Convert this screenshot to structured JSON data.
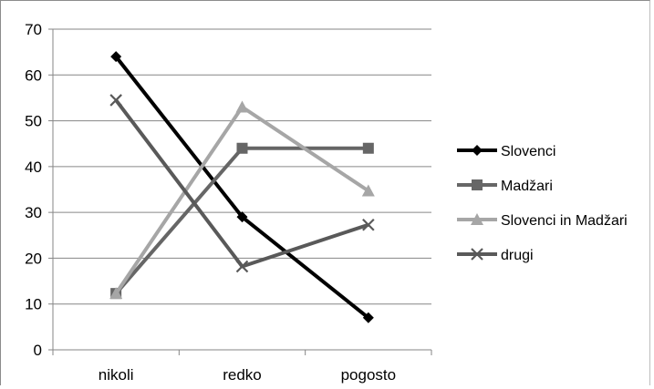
{
  "chart_data": {
    "type": "line",
    "title": "",
    "xlabel": "",
    "ylabel": "",
    "categories": [
      "nikoli",
      "redko",
      "pogosto"
    ],
    "ylim": [
      0,
      70
    ],
    "yticks": [
      0,
      10,
      20,
      30,
      40,
      50,
      60,
      70
    ],
    "grid": "horizontal",
    "legend_position": "right",
    "series": [
      {
        "name": "Slovenci",
        "values": [
          64,
          29,
          7
        ],
        "color": "#000000",
        "marker": "diamond"
      },
      {
        "name": "Madžari",
        "values": [
          12.3,
          44,
          44
        ],
        "color": "#666666",
        "marker": "square"
      },
      {
        "name": "Slovenci in Madžari",
        "values": [
          12.3,
          53,
          34.7
        ],
        "color": "#a6a6a6",
        "marker": "triangle"
      },
      {
        "name": "drugi",
        "values": [
          54.5,
          18.2,
          27.3
        ],
        "color": "#595959",
        "marker": "x"
      }
    ]
  }
}
